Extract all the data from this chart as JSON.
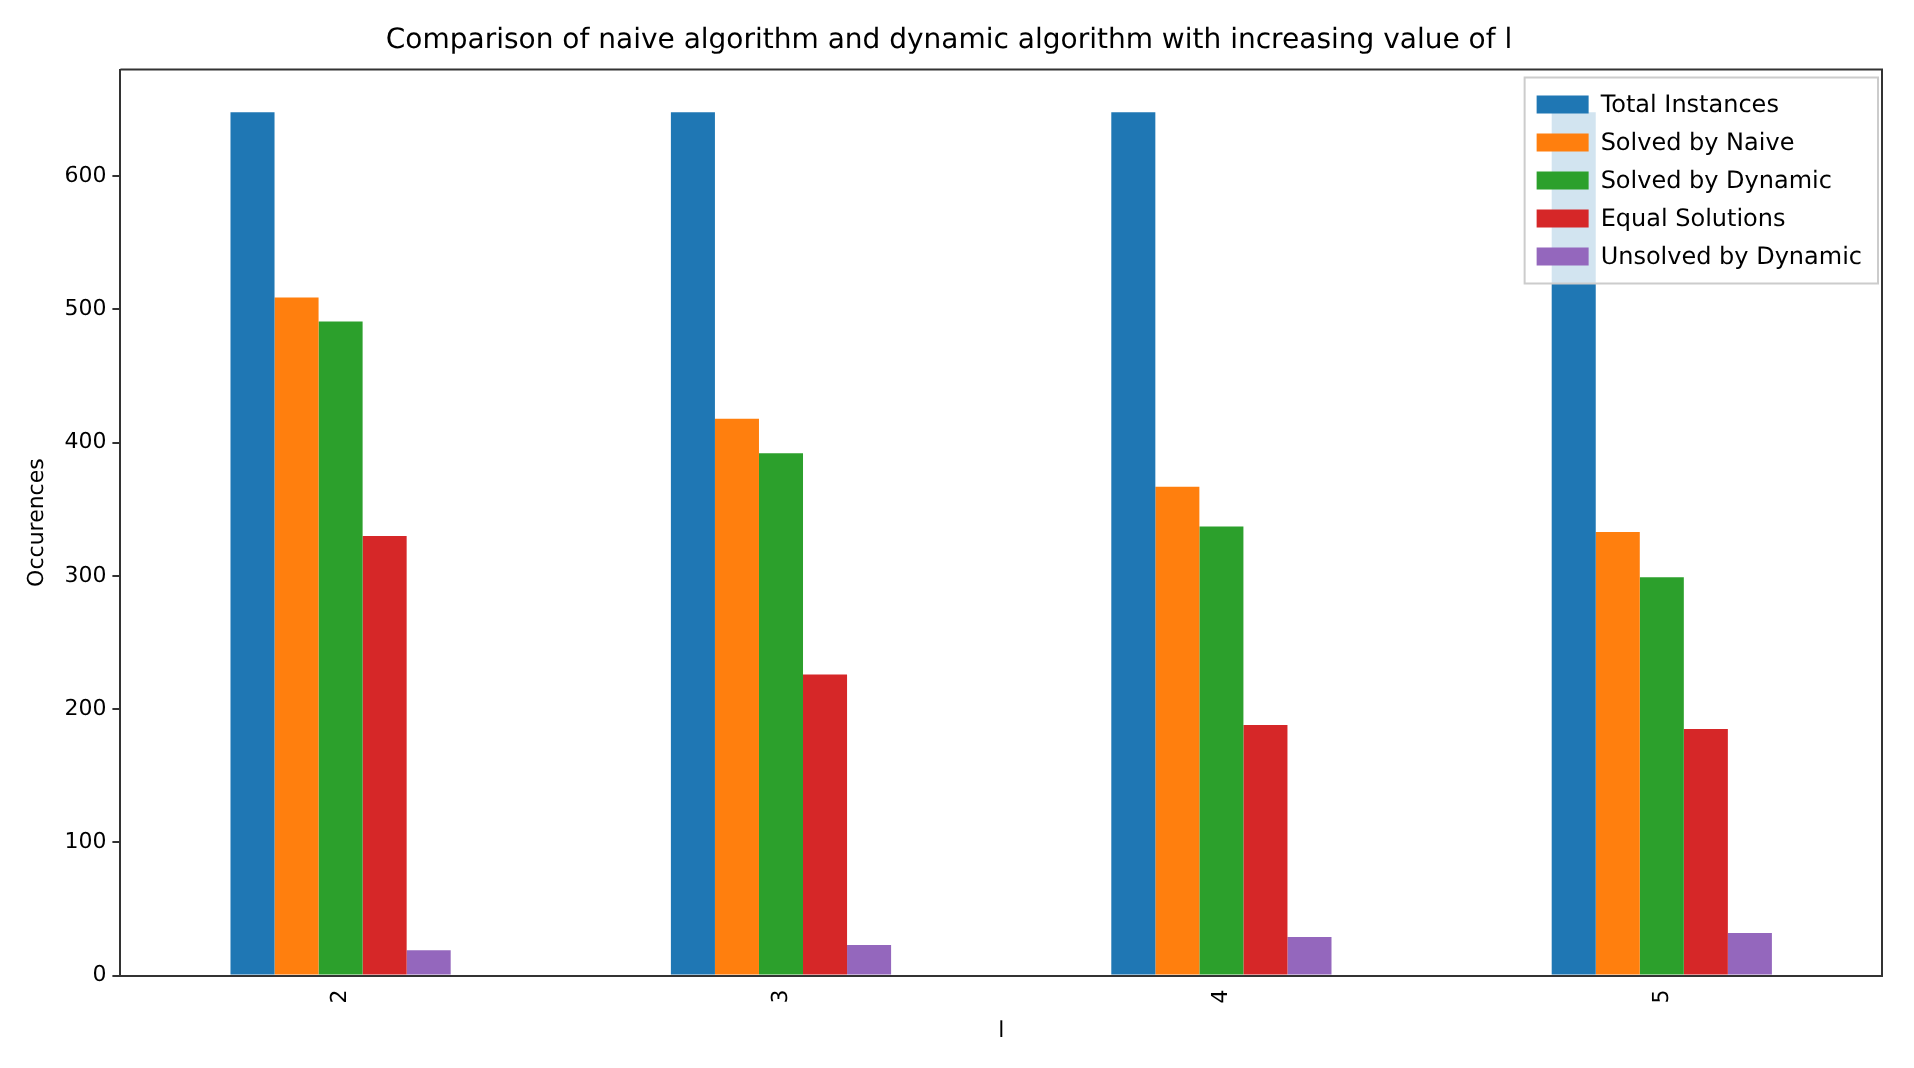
{
  "chart_data": {
    "type": "bar",
    "title": "Comparison of naive algorithm and dynamic algorithm with increasing value of l",
    "xlabel": "l",
    "ylabel": "Occurences",
    "categories": [
      "2",
      "3",
      "4",
      "5"
    ],
    "series": [
      {
        "name": "Total Instances",
        "color": "#1f77b4",
        "values": [
          648,
          648,
          648,
          648
        ]
      },
      {
        "name": "Solved by Naive",
        "color": "#ff7f0e",
        "values": [
          509,
          418,
          367,
          333
        ]
      },
      {
        "name": "Solved by Dynamic",
        "color": "#2ca02c",
        "values": [
          491,
          392,
          337,
          299
        ]
      },
      {
        "name": "Equal Solutions",
        "color": "#d62728",
        "values": [
          330,
          226,
          188,
          185
        ]
      },
      {
        "name": "Unsolved by Dynamic",
        "color": "#9467bd",
        "values": [
          19,
          23,
          29,
          32
        ]
      }
    ],
    "ylim": [
      0,
      680
    ],
    "yticks": [
      0,
      100,
      200,
      300,
      400,
      500,
      600
    ],
    "grid": false,
    "legend": "top right"
  }
}
